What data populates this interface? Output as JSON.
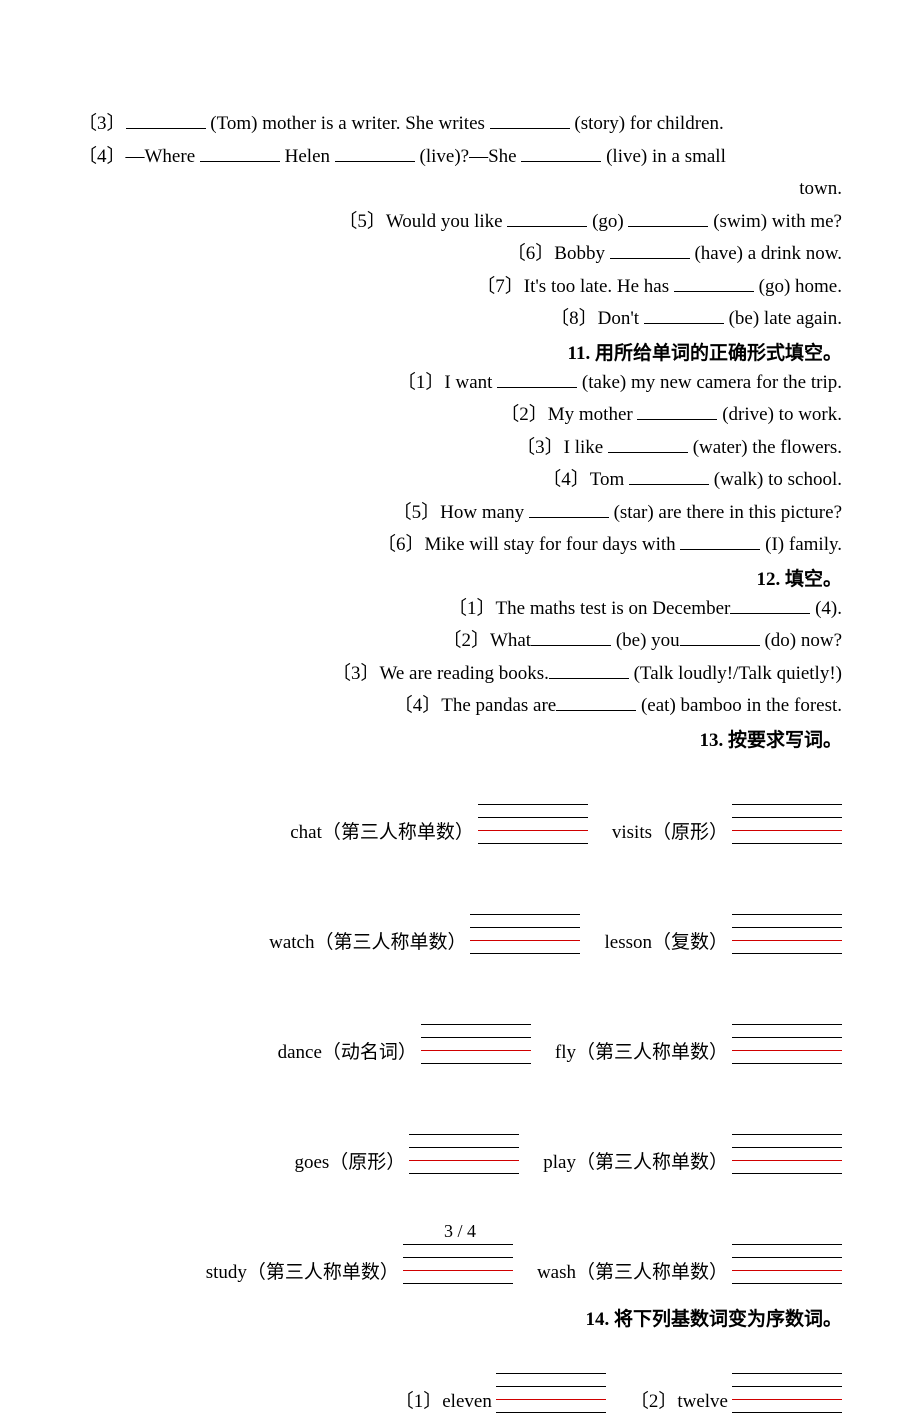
{
  "q10": {
    "items": [
      "〔3〕________ (Tom) mother is a writer. She writes ________ (story) for children.",
      "〔4〕—Where ________ Helen ________ (live)?—She ________ (live) in a small town.",
      "〔5〕Would you like ________ (go) ________ (swim) with me?",
      "〔6〕Bobby ________ (have) a drink now.",
      "〔7〕It's too late. He has ________ (go) home.",
      "〔8〕Don't ________ (be) late again."
    ]
  },
  "q11": {
    "heading": "11. 用所给单词的正确形式填空。",
    "items": [
      "〔1〕I want ________ (take) my new camera for the trip.",
      "〔2〕My mother ________ (drive) to work.",
      "〔3〕I like ________ (water) the flowers.",
      "〔4〕Tom ________ (walk) to school.",
      "〔5〕How many ________ (star) are there in this picture?",
      "〔6〕Mike will stay for four days with ________ (I) family."
    ]
  },
  "q12": {
    "heading": "12. 填空。",
    "items": [
      "〔1〕The maths test is on December________ (4).",
      "〔2〕What________ (be) you________ (do) now?",
      "〔3〕We are reading books.________ (Talk loudly!/Talk quietly!)",
      "〔4〕The pandas are________ (eat) bamboo in the forest."
    ]
  },
  "q13": {
    "heading": "13. 按要求写词。",
    "rows": [
      {
        "left": "chat（第三人称单数）",
        "right": "visits（原形）"
      },
      {
        "left": "watch（第三人称单数）",
        "right": "lesson（复数）"
      },
      {
        "left": "dance（动名词）",
        "right": "fly（第三人称单数）"
      },
      {
        "left": "goes（原形）",
        "right": "play（第三人称单数）"
      },
      {
        "left": "study（第三人称单数）",
        "right": "wash（第三人称单数）"
      }
    ]
  },
  "q14": {
    "heading": "14. 将下列基数词变为序数词。",
    "rows": [
      {
        "left": "〔1〕eleven",
        "right": "〔2〕twelve"
      }
    ]
  },
  "page": "3 / 4"
}
